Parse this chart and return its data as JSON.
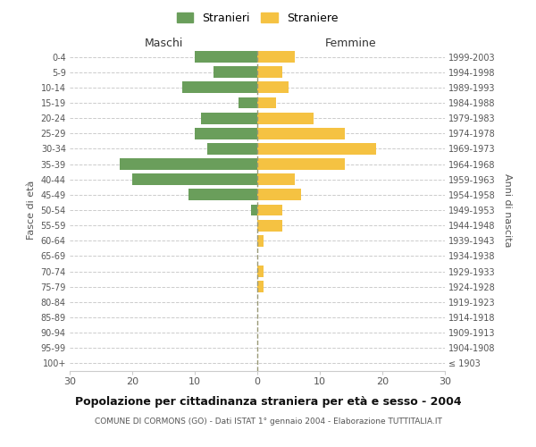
{
  "age_groups": [
    "100+",
    "95-99",
    "90-94",
    "85-89",
    "80-84",
    "75-79",
    "70-74",
    "65-69",
    "60-64",
    "55-59",
    "50-54",
    "45-49",
    "40-44",
    "35-39",
    "30-34",
    "25-29",
    "20-24",
    "15-19",
    "10-14",
    "5-9",
    "0-4"
  ],
  "birth_years": [
    "≤ 1903",
    "1904-1908",
    "1909-1913",
    "1914-1918",
    "1919-1923",
    "1924-1928",
    "1929-1933",
    "1934-1938",
    "1939-1943",
    "1944-1948",
    "1949-1953",
    "1954-1958",
    "1959-1963",
    "1964-1968",
    "1969-1973",
    "1974-1978",
    "1979-1983",
    "1984-1988",
    "1989-1993",
    "1994-1998",
    "1999-2003"
  ],
  "males": [
    0,
    0,
    0,
    0,
    0,
    0,
    0,
    0,
    0,
    0,
    1,
    11,
    20,
    22,
    8,
    10,
    9,
    3,
    12,
    7,
    10
  ],
  "females": [
    0,
    0,
    0,
    0,
    0,
    1,
    1,
    0,
    1,
    4,
    4,
    7,
    6,
    14,
    19,
    14,
    9,
    3,
    5,
    4,
    6
  ],
  "male_color": "#6a9e5b",
  "female_color": "#f5c242",
  "background_color": "#ffffff",
  "grid_color": "#cccccc",
  "title": "Popolazione per cittadinanza straniera per età e sesso - 2004",
  "subtitle": "COMUNE DI CORMONS (GO) - Dati ISTAT 1° gennaio 2004 - Elaborazione TUTTITALIA.IT",
  "left_label": "Maschi",
  "right_label": "Femmine",
  "y_left_label": "Fasce di età",
  "y_right_label": "Anni di nascita",
  "legend_male": "Stranieri",
  "legend_female": "Straniere",
  "xlim": 30,
  "bar_height": 0.75,
  "center_line_color": "#999977"
}
